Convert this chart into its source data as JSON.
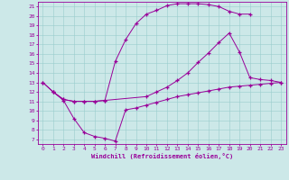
{
  "bg_color": "#cce8e8",
  "line_color": "#990099",
  "xlim": [
    -0.5,
    23.5
  ],
  "ylim": [
    6.5,
    21.5
  ],
  "xticks": [
    0,
    1,
    2,
    3,
    4,
    5,
    6,
    7,
    8,
    9,
    10,
    11,
    12,
    13,
    14,
    15,
    16,
    17,
    18,
    19,
    20,
    21,
    22,
    23
  ],
  "yticks": [
    7,
    8,
    9,
    10,
    11,
    12,
    13,
    14,
    15,
    16,
    17,
    18,
    19,
    20,
    21
  ],
  "xlabel": "Windchill (Refroidissement éolien,°C)",
  "c1x": [
    0,
    1,
    2,
    3,
    4,
    5,
    6,
    7,
    8,
    9,
    10,
    11,
    12,
    13,
    14,
    15,
    16,
    17,
    18,
    19,
    20,
    21,
    22,
    23
  ],
  "c1y": [
    13.0,
    12.0,
    11.1,
    9.2,
    7.7,
    7.3,
    7.1,
    6.8,
    10.1,
    10.3,
    10.6,
    10.9,
    11.2,
    11.5,
    11.7,
    11.9,
    12.1,
    12.3,
    12.5,
    12.6,
    12.7,
    12.8,
    12.9,
    13.0
  ],
  "c2x": [
    0,
    1,
    2,
    3,
    4,
    5,
    6,
    7,
    8,
    9,
    10,
    11,
    12,
    13,
    14,
    15,
    16,
    17,
    18,
    19,
    20
  ],
  "c2y": [
    13.0,
    12.0,
    11.2,
    11.0,
    11.0,
    11.0,
    11.1,
    15.2,
    17.5,
    19.2,
    20.2,
    20.6,
    21.1,
    21.3,
    21.3,
    21.3,
    21.2,
    21.0,
    20.5,
    20.2,
    20.2
  ],
  "c3x": [
    1,
    2,
    3,
    4,
    5,
    6,
    10,
    11,
    12,
    13,
    14,
    15,
    16,
    17,
    18,
    19,
    20,
    21,
    22,
    23
  ],
  "c3y": [
    12.0,
    11.2,
    11.0,
    11.0,
    11.0,
    11.1,
    11.5,
    12.0,
    12.5,
    13.2,
    14.0,
    15.1,
    16.1,
    17.2,
    18.2,
    16.2,
    13.5,
    13.3,
    13.2,
    13.0
  ]
}
